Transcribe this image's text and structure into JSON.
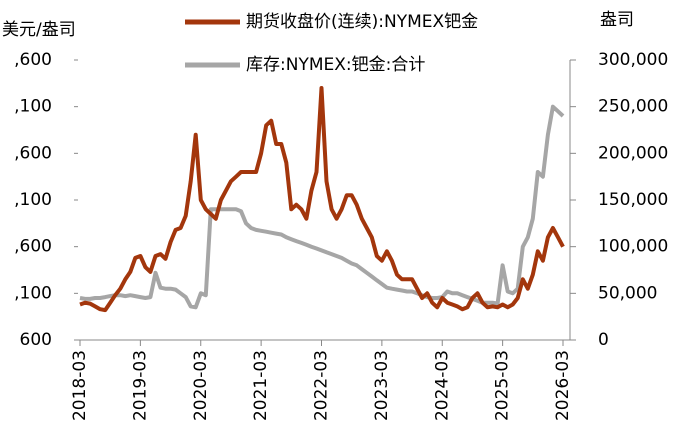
{
  "chart_data": {
    "type": "line",
    "y_axis_label": "美元/盎司",
    "y2_axis_label": "盎司",
    "x": [
      "2018-03",
      "2018-04",
      "2018-05",
      "2018-06",
      "2018-07",
      "2018-08",
      "2018-09",
      "2018-10",
      "2018-11",
      "2018-12",
      "2019-01",
      "2019-02",
      "2019-03",
      "2019-04",
      "2019-05",
      "2019-06",
      "2019-07",
      "2019-08",
      "2019-09",
      "2019-10",
      "2019-11",
      "2019-12",
      "2020-01",
      "2020-02",
      "2020-03",
      "2020-04",
      "2020-05",
      "2020-06",
      "2020-07",
      "2020-08",
      "2020-09",
      "2020-10",
      "2020-11",
      "2020-12",
      "2021-01",
      "2021-02",
      "2021-03",
      "2021-04",
      "2021-05",
      "2021-06",
      "2021-07",
      "2021-08",
      "2021-09",
      "2021-10",
      "2021-11",
      "2021-12",
      "2022-01",
      "2022-02",
      "2022-03",
      "2022-04",
      "2022-05",
      "2022-06",
      "2022-07",
      "2022-08",
      "2022-09",
      "2022-10",
      "2022-11",
      "2022-12",
      "2023-01",
      "2023-02",
      "2023-03",
      "2023-04",
      "2023-05",
      "2023-06",
      "2023-07",
      "2023-08",
      "2023-09",
      "2023-10",
      "2023-11",
      "2023-12",
      "2024-01",
      "2024-02",
      "2024-03",
      "2024-04",
      "2024-05",
      "2024-06",
      "2024-07",
      "2024-08",
      "2024-09",
      "2024-10",
      "2024-11",
      "2024-12",
      "2025-01",
      "2025-02",
      "2025-03",
      "2025-04",
      "2025-05",
      "2025-06",
      "2025-07",
      "2025-08",
      "2025-09",
      "2025-10",
      "2025-11",
      "2025-12",
      "2026-01",
      "2026-02",
      "2026-03"
    ],
    "series": [
      {
        "name": "期货收盘价(连续):NYMEX钯金",
        "color": "#a3360c",
        "values": [
          980,
          1000,
          990,
          960,
          930,
          920,
          1000,
          1080,
          1150,
          1250,
          1330,
          1480,
          1500,
          1380,
          1330,
          1500,
          1520,
          1470,
          1650,
          1780,
          1800,
          1930,
          2300,
          2800,
          2100,
          2000,
          1950,
          1900,
          2100,
          2200,
          2300,
          2350,
          2400,
          2400,
          2400,
          2400,
          2600,
          2900,
          2950,
          2700,
          2700,
          2500,
          2000,
          2050,
          2000,
          1900,
          2200,
          2400,
          3300,
          2300,
          2000,
          1900,
          2000,
          2150,
          2150,
          2050,
          1900,
          1800,
          1700,
          1500,
          1450,
          1550,
          1450,
          1300,
          1250,
          1250,
          1250,
          1150,
          1050,
          1100,
          1000,
          950,
          1050,
          1000,
          980,
          960,
          930,
          950,
          1050,
          1100,
          1000,
          950,
          960,
          950,
          980,
          950,
          980,
          1050,
          1250,
          1150,
          1300,
          1550,
          1450,
          1700,
          1800,
          1700,
          1600
        ]
      },
      {
        "name": "库存:NYMEX:钯金:合计",
        "color": "#a6a6a6",
        "axis": "y2",
        "values": [
          45000,
          44000,
          44000,
          45000,
          45000,
          46000,
          47000,
          48000,
          48000,
          47000,
          48000,
          47000,
          46000,
          45000,
          46000,
          72000,
          56000,
          55000,
          55000,
          54000,
          50000,
          46000,
          36000,
          35000,
          50000,
          48000,
          140000,
          140000,
          140000,
          140000,
          140000,
          140000,
          138000,
          125000,
          120000,
          118000,
          117000,
          116000,
          115000,
          114000,
          113000,
          110000,
          108000,
          106000,
          104000,
          102000,
          100000,
          98000,
          96000,
          94000,
          92000,
          90000,
          88000,
          85000,
          82000,
          80000,
          76000,
          72000,
          68000,
          64000,
          60000,
          56000,
          55000,
          54000,
          53000,
          52000,
          52000,
          50000,
          48000,
          46000,
          45000,
          45000,
          46000,
          52000,
          50000,
          50000,
          48000,
          46000,
          44000,
          42000,
          40000,
          40000,
          40000,
          39000,
          80000,
          52000,
          50000,
          55000,
          100000,
          110000,
          130000,
          180000,
          175000,
          220000,
          250000,
          245000,
          240000
        ]
      }
    ],
    "ylim": [
      600,
      3600
    ],
    "yticks": [
      600,
      {
        "value": 1100,
        "label": ",100"
      },
      {
        "value": 1600,
        "label": ",600"
      },
      {
        "value": 2100,
        "label": ",100"
      },
      {
        "value": 2600,
        "label": ",600"
      },
      {
        "value": 3100,
        "label": ",100"
      },
      {
        "value": 3600,
        "label": ",600"
      }
    ],
    "y2lim": [
      0,
      300000
    ],
    "y2ticks": [
      0,
      {
        "value": 50000,
        "label": "50,000"
      },
      {
        "value": 100000,
        "label": "100,000"
      },
      {
        "value": 150000,
        "label": "150,000"
      },
      {
        "value": 200000,
        "label": "200,000"
      },
      {
        "value": 250000,
        "label": "250,000"
      },
      {
        "value": 300000,
        "label": "300,000"
      }
    ],
    "legend": "top"
  }
}
